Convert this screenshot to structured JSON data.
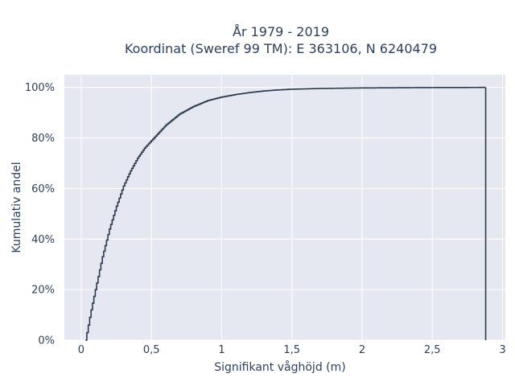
{
  "chart_data": {
    "type": "line",
    "subtype": "ecdf-step",
    "title_line1": "År 1979 - 2019",
    "title_line2": "Koordinat (Sweref 99 TM): E 363106, N 6240479",
    "xlabel": "Signifikant våghöjd (m)",
    "ylabel": "Kumulativ andel",
    "xlim": [
      -0.12,
      3.02
    ],
    "ylim": [
      0,
      1.05
    ],
    "x_ticks": [
      0,
      0.5,
      1,
      1.5,
      2,
      2.5,
      3
    ],
    "x_tick_labels": [
      "0",
      "0,5",
      "1",
      "1,5",
      "2",
      "2,5",
      "3"
    ],
    "y_ticks": [
      0,
      0.2,
      0.4,
      0.6,
      0.8,
      1.0
    ],
    "y_tick_labels": [
      "0%",
      "20%",
      "40%",
      "60%",
      "80%",
      "100%"
    ],
    "grid": true,
    "background": "#e5e8f0",
    "line_color": "#2a3a4a",
    "series": [
      {
        "x": [
          0.03,
          0.05,
          0.07,
          0.1,
          0.15,
          0.2,
          0.25,
          0.3,
          0.35,
          0.4,
          0.45,
          0.5,
          0.6,
          0.7,
          0.8,
          0.9,
          1.0,
          1.1,
          1.2,
          1.3,
          1.4,
          1.5,
          1.7,
          2.0,
          2.5,
          2.88
        ],
        "y": [
          0.0,
          0.06,
          0.12,
          0.2,
          0.33,
          0.44,
          0.53,
          0.61,
          0.67,
          0.72,
          0.76,
          0.79,
          0.85,
          0.895,
          0.925,
          0.948,
          0.962,
          0.972,
          0.98,
          0.986,
          0.99,
          0.993,
          0.996,
          0.998,
          0.9995,
          1.0
        ]
      }
    ]
  }
}
